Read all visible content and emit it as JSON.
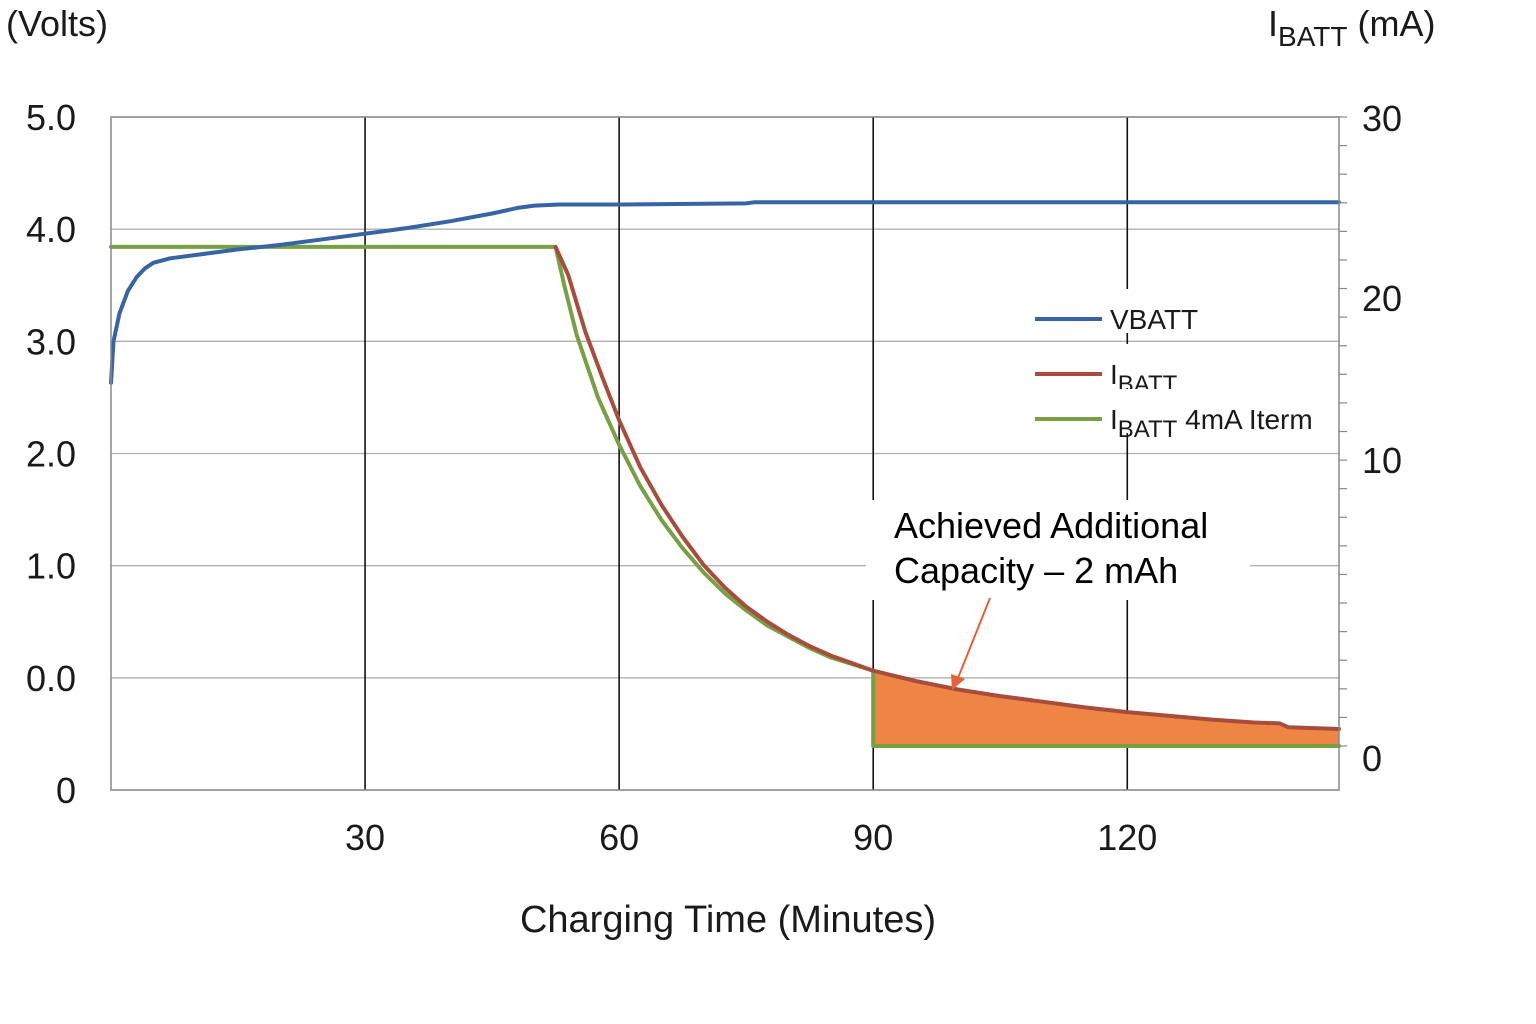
{
  "chart_data": {
    "type": "line",
    "title": "",
    "xlabel": "Charging Time (Minutes)",
    "xlim": [
      0,
      145
    ],
    "x_ticks": [
      30,
      60,
      90,
      120
    ],
    "left_axis": {
      "unit": "(Volts)",
      "ticks": [
        {
          "label": "0",
          "value": -1.0
        },
        {
          "label": "0.0",
          "value": 0.0
        },
        {
          "label": "1.0",
          "value": 1.0
        },
        {
          "label": "2.0",
          "value": 2.0
        },
        {
          "label": "3.0",
          "value": 3.0
        },
        {
          "label": "4.0",
          "value": 4.0
        },
        {
          "label": "5.0",
          "value": 5.0
        }
      ],
      "ylim": [
        -1.0,
        5.0
      ]
    },
    "right_axis": {
      "unit_main": "I",
      "unit_sub": "BATT",
      "unit_rest": " (mA)",
      "ticks": [
        0,
        10,
        20,
        30
      ]
    },
    "grid": true,
    "legend": {
      "placement": "right",
      "entries": [
        {
          "name": "VBATT",
          "label_main": "VBATT",
          "label_sub": "",
          "label_rest": "",
          "color": "#3765a4"
        },
        {
          "name": "IBATT",
          "label_main": "I",
          "label_sub": "BATT",
          "label_rest": "",
          "color": "#a84c3c"
        },
        {
          "name": "IBATT 4mA Iterm",
          "label_main": "I",
          "label_sub": "BATT",
          "label_rest": " 4mA Iterm",
          "color": "#77a044"
        }
      ]
    },
    "series": [
      {
        "name": "VBATT",
        "axis": "left",
        "color": "#3765a4",
        "points": [
          [
            0,
            2.63
          ],
          [
            0.3,
            3.0
          ],
          [
            1,
            3.25
          ],
          [
            2,
            3.45
          ],
          [
            3,
            3.57
          ],
          [
            4,
            3.65
          ],
          [
            5,
            3.7
          ],
          [
            7,
            3.74
          ],
          [
            10,
            3.77
          ],
          [
            15,
            3.82
          ],
          [
            20,
            3.86
          ],
          [
            25,
            3.91
          ],
          [
            30,
            3.96
          ],
          [
            35,
            4.01
          ],
          [
            40,
            4.07
          ],
          [
            45,
            4.14
          ],
          [
            48,
            4.19
          ],
          [
            50,
            4.21
          ],
          [
            53,
            4.22
          ],
          [
            60,
            4.22
          ],
          [
            75,
            4.23
          ],
          [
            76,
            4.24
          ],
          [
            90,
            4.24
          ],
          [
            120,
            4.24
          ],
          [
            145,
            4.24
          ]
        ]
      },
      {
        "name": "IBATT",
        "axis": "right",
        "color": "#a84c3c",
        "points": [
          [
            52.5,
            26.5
          ],
          [
            54,
            25.0
          ],
          [
            56,
            22.0
          ],
          [
            58,
            19.6
          ],
          [
            60,
            17.3
          ],
          [
            62.5,
            14.8
          ],
          [
            65,
            12.8
          ],
          [
            67.5,
            11.1
          ],
          [
            70,
            9.6
          ],
          [
            72.5,
            8.4
          ],
          [
            75,
            7.4
          ],
          [
            77.5,
            6.6
          ],
          [
            80,
            5.9
          ],
          [
            82.5,
            5.3
          ],
          [
            85,
            4.8
          ],
          [
            87.5,
            4.4
          ],
          [
            90,
            4.0
          ],
          [
            95,
            3.45
          ],
          [
            100,
            3.0
          ],
          [
            105,
            2.65
          ],
          [
            110,
            2.35
          ],
          [
            115,
            2.05
          ],
          [
            120,
            1.8
          ],
          [
            125,
            1.6
          ],
          [
            130,
            1.4
          ],
          [
            135,
            1.25
          ],
          [
            138,
            1.2
          ],
          [
            139,
            1.0
          ],
          [
            145,
            0.9
          ]
        ]
      },
      {
        "name": "IBATT 4mA Iterm",
        "axis": "right",
        "color": "#77a044",
        "points": [
          [
            0,
            26.5
          ],
          [
            52.5,
            26.5
          ],
          [
            53.5,
            24.5
          ],
          [
            55,
            21.8
          ],
          [
            57.5,
            18.5
          ],
          [
            60,
            16.0
          ],
          [
            62.5,
            13.8
          ],
          [
            65,
            12.0
          ],
          [
            67.5,
            10.5
          ],
          [
            70,
            9.2
          ],
          [
            72.5,
            8.1
          ],
          [
            75,
            7.2
          ],
          [
            77.5,
            6.4
          ],
          [
            80,
            5.8
          ],
          [
            82.5,
            5.2
          ],
          [
            85,
            4.7
          ],
          [
            87.5,
            4.35
          ],
          [
            90,
            4.0
          ],
          [
            90,
            0.0
          ],
          [
            145,
            0.0
          ]
        ]
      }
    ],
    "annotation": {
      "line1": "Achieved Additional",
      "line2": "Capacity – 2 mAh",
      "fill_color": "#ef8544",
      "arrow_color": "#e8603a",
      "fill_from_x": 90,
      "fill_to_x": 145
    }
  }
}
